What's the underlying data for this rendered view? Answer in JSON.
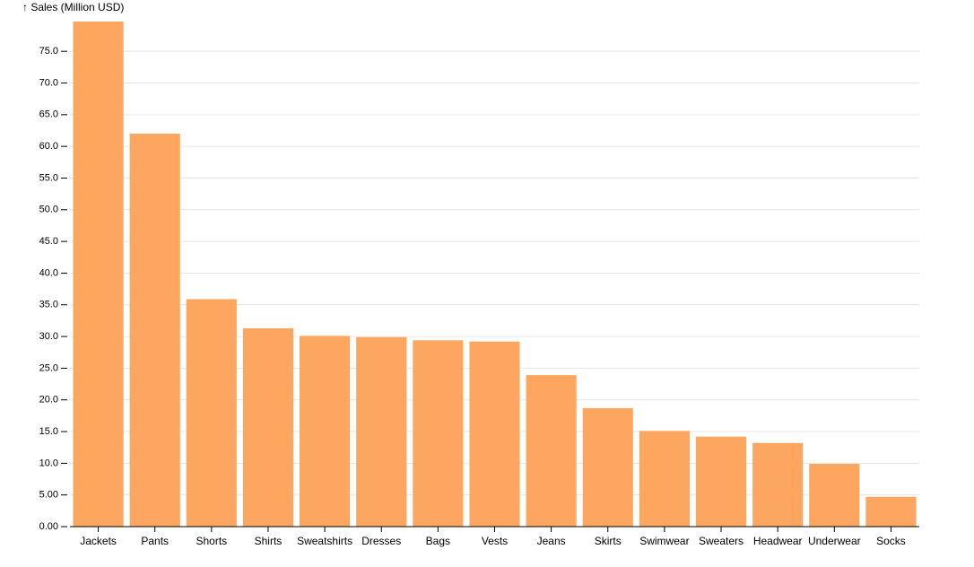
{
  "chart_data": {
    "type": "bar",
    "y_label": "↑ Sales (Million USD)",
    "categories": [
      "Jackets",
      "Pants",
      "Shorts",
      "Shirts",
      "Sweatshirts",
      "Dresses",
      "Bags",
      "Vests",
      "Jeans",
      "Skirts",
      "Swimwear",
      "Sweaters",
      "Headwear",
      "Underwear",
      "Socks"
    ],
    "values": [
      79.7,
      62.0,
      35.9,
      31.3,
      30.1,
      29.9,
      29.4,
      29.2,
      23.9,
      18.7,
      15.1,
      14.2,
      13.2,
      9.9,
      4.7
    ],
    "color": "#fca65f",
    "ylim": [
      0,
      79.7
    ],
    "yticks": [
      {
        "value": 0,
        "label": "0.00"
      },
      {
        "value": 5,
        "label": "5.00"
      },
      {
        "value": 10,
        "label": "10.0"
      },
      {
        "value": 15,
        "label": "15.0"
      },
      {
        "value": 20,
        "label": "20.0"
      },
      {
        "value": 25,
        "label": "25.0"
      },
      {
        "value": 30,
        "label": "30.0"
      },
      {
        "value": 35,
        "label": "35.0"
      },
      {
        "value": 40,
        "label": "40.0"
      },
      {
        "value": 45,
        "label": "45.0"
      },
      {
        "value": 50,
        "label": "50.0"
      },
      {
        "value": 55,
        "label": "55.0"
      },
      {
        "value": 60,
        "label": "60.0"
      },
      {
        "value": 65,
        "label": "65.0"
      },
      {
        "value": 70,
        "label": "70.0"
      },
      {
        "value": 75,
        "label": "75.0"
      }
    ],
    "grid": true
  }
}
